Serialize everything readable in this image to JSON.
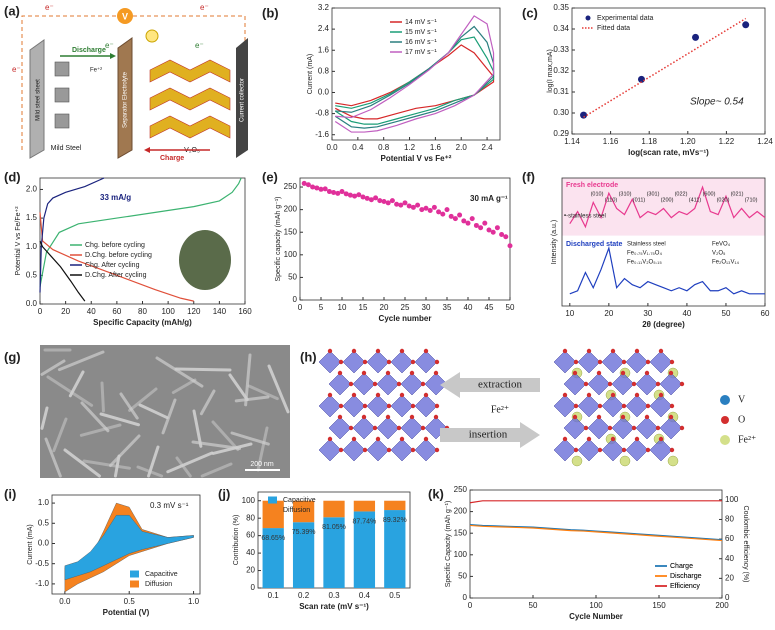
{
  "panel_a": {
    "label": "(a)",
    "electrons": [
      "e⁻",
      "e⁻",
      "e⁻",
      "e⁻",
      "e⁻"
    ],
    "meter": "V",
    "discharge": "Discharge",
    "charge": "Charge",
    "ion": "Fe⁺²",
    "sheet": "Mild steel sheet",
    "steel": "Mild Steel",
    "separator": "Separator Electrolyte",
    "cathode": "V₂O₅",
    "collector": "Current collector"
  },
  "panel_g": {
    "label": "(g)",
    "scale": "200 nm"
  },
  "panel_h": {
    "label": "(h)",
    "extraction": "extraction",
    "ion": "Fe²⁺",
    "insertion": "insertion",
    "legend": [
      "V",
      "O",
      "Fe²⁺"
    ]
  },
  "chart_data": [
    {
      "type": "line",
      "label": "(b)",
      "x_label": "Potential V vs Fe⁺²",
      "y_label": "Current (mA)",
      "xlim": [
        0,
        2.6
      ],
      "xticks": [
        {
          "value": 0,
          "label": "0.0"
        },
        0.4,
        0.8,
        1.2,
        1.6,
        {
          "value": 2,
          "label": "2.0"
        },
        2.4
      ],
      "ylim": [
        -1.8,
        3.2
      ],
      "yticks": [
        -1.6,
        -0.8,
        {
          "value": 0,
          "label": "0.0"
        },
        0.8,
        1.6,
        2.4,
        3.2
      ],
      "series": [
        {
          "name": "14 mV s⁻¹",
          "color": "#d62728",
          "x": [
            0.05,
            0.3,
            0.6,
            0.9,
            1.2,
            1.5,
            1.8,
            2.0,
            2.2,
            2.4,
            2.5,
            2.5,
            2.2,
            1.9,
            1.6,
            1.3,
            1.0,
            0.7,
            0.5,
            0.3,
            0.05
          ],
          "values": [
            -0.4,
            -0.5,
            -0.3,
            0.0,
            0.4,
            0.9,
            1.4,
            1.8,
            1.5,
            0.9,
            0.6,
            0.4,
            -0.1,
            -0.3,
            -0.5,
            -0.6,
            -0.8,
            -1.0,
            -1.0,
            -0.9,
            -0.6
          ]
        },
        {
          "name": "15 mV s⁻¹",
          "color": "#1b9e77",
          "x": [
            0.05,
            0.3,
            0.6,
            0.9,
            1.2,
            1.5,
            1.8,
            2.0,
            2.2,
            2.4,
            2.5,
            2.5,
            2.2,
            1.9,
            1.6,
            1.3,
            1.0,
            0.7,
            0.5,
            0.3,
            0.05
          ],
          "values": [
            -0.5,
            -0.6,
            -0.4,
            -0.05,
            0.4,
            0.9,
            1.5,
            2.0,
            2.1,
            1.3,
            0.8,
            0.5,
            -0.1,
            -0.3,
            -0.6,
            -0.8,
            -1.0,
            -1.2,
            -1.2,
            -1.1,
            -0.7
          ]
        },
        {
          "name": "16 mV s⁻¹",
          "color": "#2a7f7f",
          "x": [
            0.05,
            0.3,
            0.6,
            0.9,
            1.2,
            1.5,
            1.8,
            2.0,
            2.2,
            2.4,
            2.5,
            2.5,
            2.2,
            1.9,
            1.6,
            1.3,
            1.0,
            0.7,
            0.5,
            0.3,
            0.05
          ],
          "values": [
            -0.7,
            -0.75,
            -0.5,
            -0.1,
            0.35,
            0.9,
            1.5,
            2.1,
            2.5,
            1.9,
            1.1,
            0.6,
            -0.1,
            -0.4,
            -0.7,
            -0.9,
            -1.1,
            -1.3,
            -1.35,
            -1.3,
            -0.9
          ]
        },
        {
          "name": "17 mV s⁻¹",
          "color": "#c05fc0",
          "x": [
            0.05,
            0.3,
            0.6,
            0.9,
            1.2,
            1.5,
            1.8,
            2.0,
            2.2,
            2.4,
            2.5,
            2.5,
            2.2,
            1.9,
            1.6,
            1.3,
            1.0,
            0.7,
            0.5,
            0.3,
            0.05
          ],
          "values": [
            -0.9,
            -0.95,
            -0.65,
            -0.2,
            0.3,
            0.85,
            1.5,
            2.2,
            2.9,
            2.6,
            1.5,
            0.7,
            -0.1,
            -0.5,
            -0.8,
            -1.0,
            -1.25,
            -1.45,
            -1.5,
            -1.5,
            -1.1
          ]
        }
      ]
    },
    {
      "type": "scatter",
      "label": "(c)",
      "x_label": "log(scan rate, mVs⁻¹)",
      "y_label": "log(I max,mA)",
      "xlim": [
        1.14,
        1.24
      ],
      "xticks": [
        1.14,
        1.16,
        1.18,
        {
          "value": 1.2,
          "label": "1.20"
        },
        1.22,
        1.24
      ],
      "ylim": [
        0.29,
        0.35
      ],
      "yticks": [
        0.29,
        {
          "value": 0.3,
          "label": "0.30"
        },
        0.31,
        0.32,
        0.33,
        0.34,
        0.35
      ],
      "series": [
        {
          "name": "Experimental data",
          "color": "#1a237e",
          "x": [
            1.146,
            1.176,
            1.204,
            1.23
          ],
          "values": [
            0.299,
            0.316,
            0.336,
            0.342
          ]
        }
      ],
      "fit": {
        "name": "Fitted data",
        "color": "#e53935",
        "x": [
          1.146,
          1.23
        ],
        "values": [
          0.298,
          0.345
        ]
      },
      "annotation": "Slope~ 0.54"
    },
    {
      "type": "line",
      "label": "(d)",
      "x_label": "Specific Capacity (mAh/g)",
      "y_label": "Potential V vs Fe/Fe⁺²",
      "xlim": [
        0,
        160
      ],
      "xticks": [
        0,
        20,
        40,
        60,
        80,
        100,
        120,
        140,
        160
      ],
      "ylim": [
        0,
        2.2
      ],
      "yticks": [
        {
          "value": 0,
          "label": "0.0"
        },
        0.5,
        {
          "value": 1,
          "label": "1.0"
        },
        1.5,
        {
          "value": 2,
          "label": "2.0"
        }
      ],
      "series": [
        {
          "name": "Chg. before cycling",
          "color": "#3cb371",
          "x": [
            0,
            5,
            15,
            30,
            60,
            90,
            120,
            140,
            150,
            155,
            157
          ],
          "values": [
            0.3,
            0.9,
            1.25,
            1.4,
            1.5,
            1.6,
            1.7,
            1.8,
            1.95,
            2.1,
            2.2
          ]
        },
        {
          "name": "D.Chg. before cycling",
          "color": "#e0503a",
          "x": [
            0,
            2,
            10,
            30,
            60,
            90,
            110,
            120
          ],
          "values": [
            1.6,
            1.1,
            0.95,
            0.75,
            0.5,
            0.25,
            0.1,
            0.05
          ]
        },
        {
          "name": "Chg. After cycling",
          "color": "#1a237e",
          "x": [
            0,
            1,
            3,
            6,
            10,
            20,
            35,
            50
          ],
          "values": [
            0.2,
            1.0,
            1.5,
            1.75,
            1.85,
            1.95,
            2.05,
            2.2
          ]
        },
        {
          "name": "D.Chg. After cycling",
          "color": "#111111",
          "x": [
            0,
            2,
            8,
            16,
            24,
            30,
            35
          ],
          "values": [
            1.1,
            1.0,
            0.85,
            0.65,
            0.4,
            0.2,
            0.05
          ]
        }
      ],
      "annotation": "33 mA/g"
    },
    {
      "type": "scatter",
      "label": "(e)",
      "x_label": "Cycle number",
      "y_label": "Specific capacity (mAh g⁻¹)",
      "xlim": [
        0,
        50
      ],
      "xticks": [
        0,
        5,
        10,
        15,
        20,
        25,
        30,
        35,
        40,
        45,
        50
      ],
      "ylim": [
        0,
        270
      ],
      "yticks": [
        0,
        50,
        100,
        150,
        200,
        250
      ],
      "series": [
        {
          "name": "",
          "color": "#e0309a",
          "x": [
            1,
            2,
            3,
            4,
            5,
            6,
            7,
            8,
            9,
            10,
            11,
            12,
            13,
            14,
            15,
            16,
            17,
            18,
            19,
            20,
            21,
            22,
            23,
            24,
            25,
            26,
            27,
            28,
            29,
            30,
            31,
            32,
            33,
            34,
            35,
            36,
            37,
            38,
            39,
            40,
            41,
            42,
            43,
            44,
            45,
            46,
            47,
            48,
            49,
            50
          ],
          "values": [
            258,
            255,
            250,
            248,
            245,
            246,
            240,
            238,
            236,
            240,
            235,
            232,
            230,
            233,
            228,
            225,
            222,
            226,
            220,
            218,
            215,
            220,
            212,
            210,
            215,
            208,
            205,
            210,
            200,
            203,
            198,
            205,
            195,
            190,
            200,
            185,
            180,
            188,
            175,
            170,
            180,
            165,
            160,
            170,
            155,
            150,
            160,
            145,
            140,
            120
          ]
        }
      ],
      "annotation": "30 mA g⁻¹"
    },
    {
      "type": "line",
      "label": "(f)",
      "x_label": "2θ (degree)",
      "y_label": "Intensity (a.u.)",
      "xlim": [
        8,
        60
      ],
      "xticks": [
        10,
        20,
        30,
        40,
        50,
        60
      ],
      "ylim": [
        0,
        2.1
      ],
      "x": [
        10,
        12,
        14,
        16,
        18,
        20,
        22,
        24,
        26,
        28,
        30,
        32,
        34,
        36,
        38,
        40,
        42,
        44,
        46,
        48,
        50,
        52,
        54,
        56,
        58,
        60
      ],
      "series": [
        {
          "name": "Fresh electrode",
          "color": "#e8398f",
          "values": [
            1.35,
            1.55,
            1.3,
            1.7,
            1.45,
            1.85,
            1.6,
            1.5,
            1.75,
            1.45,
            1.55,
            1.5,
            1.6,
            1.45,
            1.55,
            1.5,
            1.6,
            1.95,
            1.55,
            1.5,
            1.8,
            1.45,
            1.6,
            1.45,
            1.55,
            1.45
          ]
        },
        {
          "name": "Discharged state",
          "color": "#1f3fbf",
          "values": [
            0.2,
            0.25,
            0.55,
            0.3,
            0.6,
            0.95,
            0.3,
            0.45,
            0.35,
            0.3,
            0.4,
            0.35,
            0.3,
            0.25,
            0.3,
            0.25,
            0.35,
            0.4,
            0.25,
            0.25,
            0.3,
            0.2,
            0.25,
            0.2,
            0.2,
            0.2
          ]
        }
      ],
      "peaks": [
        "(010)",
        "(110)",
        "(310)",
        "(011)",
        "(301)",
        "(200)",
        "(022)",
        "(411)",
        "(600)",
        "(020)",
        "(021)",
        "(710)"
      ],
      "note": "•-stainless steel",
      "phases": [
        "Stainless steel",
        "Fe₀.₇₅V₁.₇₅O₄",
        "Fe₀.₁₁V₂O₅.₁₅",
        "FeVO₄",
        "V₂O₅",
        "Fe₂O₁₃V₁₄"
      ]
    },
    {
      "type": "area",
      "label": "(i)",
      "x_label": "Potential (V)",
      "y_label": "Current (mA)",
      "xlim": [
        -0.1,
        1.05
      ],
      "xticks": [
        {
          "value": 0,
          "label": "0.0"
        },
        0.5,
        {
          "value": 1,
          "label": "1.0"
        }
      ],
      "ylim": [
        -1.25,
        1.2
      ],
      "yticks": [
        {
          "value": -1,
          "label": "-1.0"
        },
        -0.5,
        {
          "value": 0,
          "label": "0.0"
        },
        0.5,
        {
          "value": 1,
          "label": "1.0"
        }
      ],
      "series": [
        {
          "name": "Capacitive",
          "color": "#29a3e0",
          "x": [
            0,
            0.1,
            0.2,
            0.3,
            0.4,
            0.5,
            0.6,
            0.8,
            1,
            1,
            0.8,
            0.6,
            0.5,
            0.4,
            0.3,
            0.2,
            0.1,
            0
          ],
          "values": [
            -0.55,
            -0.45,
            -0.2,
            0.2,
            0.7,
            0.7,
            0.3,
            0.15,
            0.2,
            0.15,
            0,
            -0.15,
            -0.25,
            -0.4,
            -0.55,
            -0.7,
            -0.8,
            -0.9
          ]
        },
        {
          "name": "Diffusion",
          "color": "#f5821f",
          "x": [
            0,
            0.1,
            0.2,
            0.3,
            0.4,
            0.5,
            0.6,
            0.8,
            1,
            1,
            0.8,
            0.6,
            0.5,
            0.4,
            0.3,
            0.2,
            0.1,
            0
          ],
          "values": [
            -0.6,
            -0.5,
            -0.35,
            0.3,
            1.0,
            0.9,
            0.35,
            0.15,
            0.2,
            0.15,
            0,
            -0.2,
            -0.3,
            -0.5,
            -0.7,
            -0.85,
            -1.0,
            -1.2
          ]
        }
      ],
      "annotation": "0.3 mV s⁻¹"
    },
    {
      "type": "bar",
      "label": "(j)",
      "stacked": true,
      "x_label": "Scan rate (mV s⁻¹)",
      "y_label": "Contribution (%)",
      "categories": [
        "0.1",
        "0.2",
        "0.3",
        "0.4",
        "0.5"
      ],
      "ylim": [
        0,
        110
      ],
      "yticks": [
        0,
        20,
        40,
        60,
        80,
        100
      ],
      "series": [
        {
          "name": "Capacitive",
          "color": "#29a3e0",
          "values": [
            68.65,
            75.39,
            81.05,
            87.74,
            89.32
          ],
          "value_labels": [
            "68.65%",
            "75.39%",
            "81.05%",
            "87.74%",
            "89.32%"
          ]
        },
        {
          "name": "Diffusion",
          "color": "#f5821f",
          "values": [
            31.35,
            24.61,
            18.95,
            12.26,
            10.68
          ]
        }
      ]
    },
    {
      "type": "line",
      "label": "(k)",
      "x_label": "Cycle Number",
      "y_label": "Specific Capacity (mAh g⁻¹)",
      "y2_label": "Coulombic efficiency (%)",
      "xlim": [
        0,
        200
      ],
      "xticks": [
        0,
        50,
        100,
        150,
        200
      ],
      "ylim": [
        0,
        250
      ],
      "yticks": [
        0,
        50,
        100,
        150,
        200,
        250
      ],
      "y2lim": [
        0,
        110
      ],
      "y2ticks": [
        0,
        20,
        40,
        60,
        80,
        100
      ],
      "x": [
        0,
        10,
        20,
        30,
        40,
        50,
        60,
        70,
        80,
        90,
        100,
        110,
        120,
        130,
        140,
        150,
        160,
        170,
        180,
        190,
        200
      ],
      "series": [
        {
          "name": "Charge",
          "color": "#1f77b4",
          "values": [
            170,
            168,
            167,
            166,
            165,
            164,
            162,
            160,
            158,
            157,
            155,
            153,
            151,
            149,
            147,
            145,
            143,
            141,
            139,
            137,
            135
          ]
        },
        {
          "name": "Discharge",
          "color": "#ff7f0e",
          "values": [
            168,
            166,
            165,
            164,
            163,
            162,
            160,
            158,
            156,
            155,
            153,
            151,
            149,
            147,
            145,
            143,
            141,
            139,
            137,
            135,
            133
          ]
        },
        {
          "name": "Efficiency",
          "color": "#d62728",
          "axis": "y2",
          "values": [
            97,
            99,
            99,
            99,
            99,
            99,
            99,
            99,
            99,
            99,
            99,
            99,
            99,
            99,
            99,
            99,
            99,
            99,
            99,
            99,
            99
          ]
        }
      ]
    }
  ]
}
